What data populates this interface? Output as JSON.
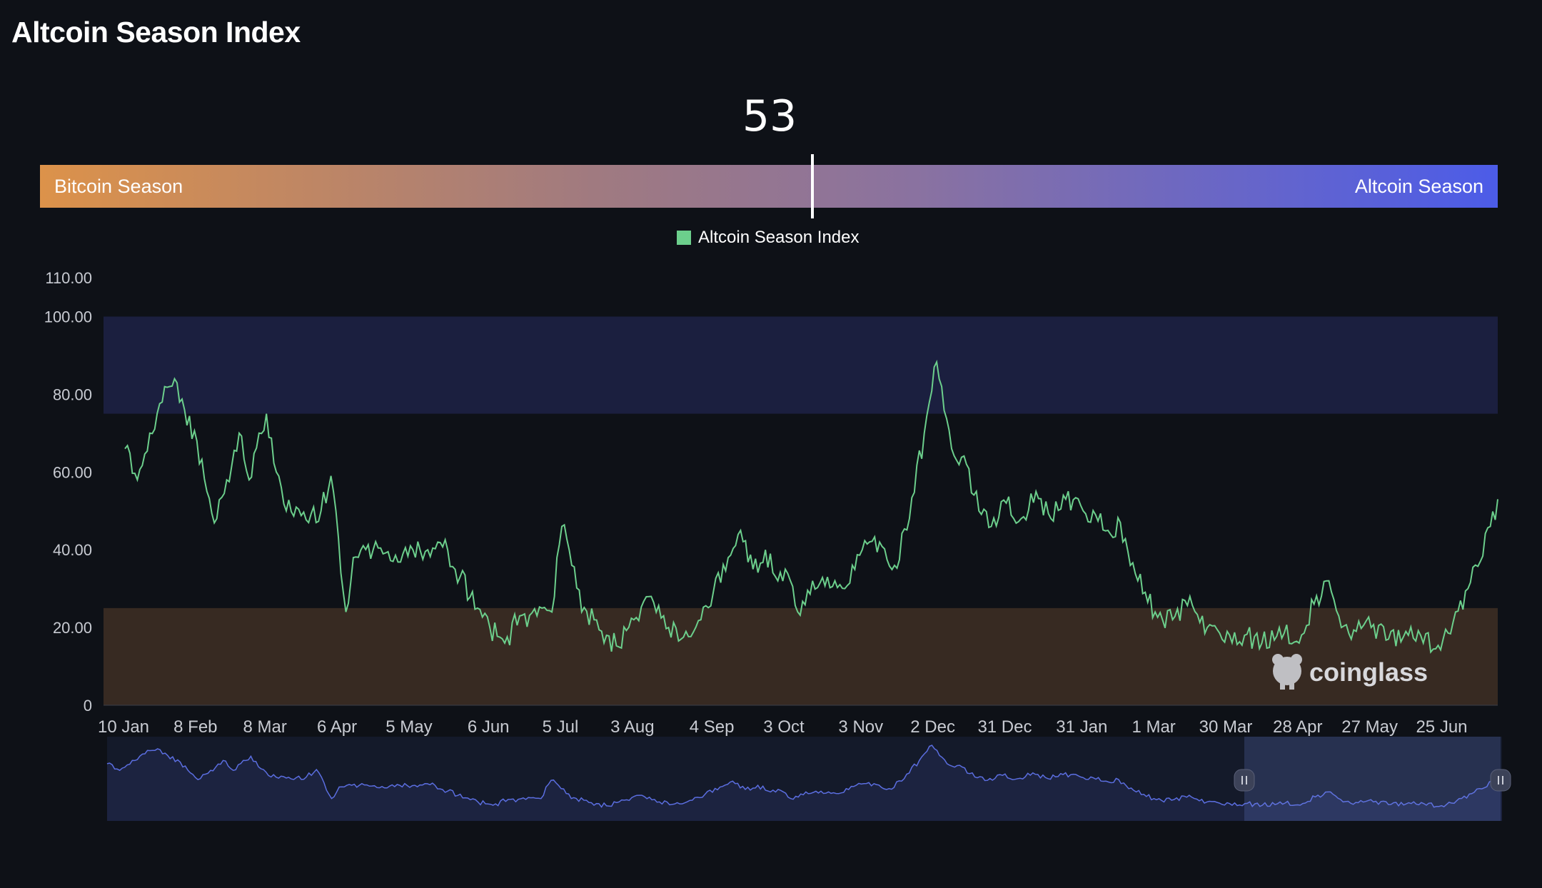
{
  "header": {
    "title": "Altcoin Season Index"
  },
  "indicator": {
    "value": "53",
    "left_label": "Bitcoin Season",
    "right_label": "Altcoin Season"
  },
  "legend": {
    "label": "Altcoin Season Index",
    "color": "#6ccf8c"
  },
  "watermark": {
    "text": "coinglass"
  },
  "colors": {
    "background": "#0e1117",
    "altcoin_zone": "#1b1f3f",
    "bitcoin_zone": "#372a22",
    "line": "#6ccf8c",
    "navigator": "#5b6ee0"
  },
  "chart_data": {
    "type": "line",
    "title": "",
    "xlabel": "",
    "ylabel": "",
    "ylim": [
      0,
      110
    ],
    "y_ticks": [
      "0",
      "20.00",
      "40.00",
      "60.00",
      "80.00",
      "100.00",
      "110.00"
    ],
    "x_ticks": [
      "10 Jan",
      "8 Feb",
      "8 Mar",
      "6 Apr",
      "5 May",
      "6 Jun",
      "5 Jul",
      "3 Aug",
      "4 Sep",
      "3 Oct",
      "3 Nov",
      "2 Dec",
      "31 Dec",
      "31 Jan",
      "1 Mar",
      "30 Mar",
      "28 Apr",
      "27 May",
      "25 Jun"
    ],
    "zones": [
      {
        "name": "Altcoin Season",
        "from": 75,
        "to": 100
      },
      {
        "name": "Bitcoin Season",
        "from": 0,
        "to": 25
      }
    ],
    "series": [
      {
        "name": "Altcoin Season Index",
        "keypoints": [
          [
            "10 Jan",
            66
          ],
          [
            "15 Jan",
            58
          ],
          [
            "20 Jan",
            70
          ],
          [
            "25 Jan",
            78
          ],
          [
            "30 Jan",
            84
          ],
          [
            "3 Feb",
            76
          ],
          [
            "8 Feb",
            68
          ],
          [
            "12 Feb",
            55
          ],
          [
            "16 Feb",
            48
          ],
          [
            "20 Feb",
            58
          ],
          [
            "25 Feb",
            70
          ],
          [
            "1 Mar",
            58
          ],
          [
            "5 Mar",
            70
          ],
          [
            "8 Mar",
            75
          ],
          [
            "12 Mar",
            60
          ],
          [
            "16 Mar",
            50
          ],
          [
            "20 Mar",
            51
          ],
          [
            "25 Mar",
            47
          ],
          [
            "30 Mar",
            50
          ],
          [
            "3 Apr",
            59
          ],
          [
            "6 Apr",
            43
          ],
          [
            "9 Apr",
            24
          ],
          [
            "12 Apr",
            38
          ],
          [
            "20 Apr",
            40
          ],
          [
            "28 Apr",
            37
          ],
          [
            "5 May",
            41
          ],
          [
            "12 May",
            40
          ],
          [
            "20 May",
            40
          ],
          [
            "25 May",
            33
          ],
          [
            "1 Jun",
            25
          ],
          [
            "6 Jun",
            20
          ],
          [
            "12 Jun",
            16
          ],
          [
            "18 Jun",
            23
          ],
          [
            "25 Jun",
            23
          ],
          [
            "1 Jul",
            24
          ],
          [
            "5 Jul",
            46
          ],
          [
            "9 Jul",
            36
          ],
          [
            "13 Jul",
            24
          ],
          [
            "18 Jul",
            22
          ],
          [
            "23 Jul",
            18
          ],
          [
            "28 Jul",
            15
          ],
          [
            "3 Aug",
            22
          ],
          [
            "10 Aug",
            28
          ],
          [
            "17 Aug",
            20
          ],
          [
            "24 Aug",
            19
          ],
          [
            "30 Aug",
            22
          ],
          [
            "4 Sep",
            29
          ],
          [
            "10 Sep",
            38
          ],
          [
            "15 Sep",
            45
          ],
          [
            "20 Sep",
            35
          ],
          [
            "25 Sep",
            40
          ],
          [
            "30 Sep",
            32
          ],
          [
            "3 Oct",
            35
          ],
          [
            "8 Oct",
            24
          ],
          [
            "14 Oct",
            32
          ],
          [
            "20 Oct",
            33
          ],
          [
            "27 Oct",
            30
          ],
          [
            "3 Nov",
            40
          ],
          [
            "10 Nov",
            42
          ],
          [
            "16 Nov",
            36
          ],
          [
            "22 Nov",
            48
          ],
          [
            "28 Nov",
            70
          ],
          [
            "2 Dec",
            87
          ],
          [
            "5 Dec",
            82
          ],
          [
            "9 Dec",
            66
          ],
          [
            "15 Dec",
            62
          ],
          [
            "20 Dec",
            50
          ],
          [
            "25 Dec",
            46
          ],
          [
            "31 Dec",
            52
          ],
          [
            "6 Jan",
            48
          ],
          [
            "12 Jan",
            55
          ],
          [
            "18 Jan",
            48
          ],
          [
            "24 Jan",
            53
          ],
          [
            "31 Jan",
            50
          ],
          [
            "5 Feb",
            49
          ],
          [
            "10 Feb",
            45
          ],
          [
            "15 Feb",
            47
          ],
          [
            "22 Feb",
            32
          ],
          [
            "1 Mar",
            24
          ],
          [
            "8 Mar",
            22
          ],
          [
            "15 Mar",
            28
          ],
          [
            "22 Mar",
            20
          ],
          [
            "30 Mar",
            19
          ],
          [
            "6 Apr",
            18
          ],
          [
            "13 Apr",
            16
          ],
          [
            "20 Apr",
            20
          ],
          [
            "28 Apr",
            16
          ],
          [
            "4 May",
            26
          ],
          [
            "9 May",
            32
          ],
          [
            "15 May",
            20
          ],
          [
            "21 May",
            19
          ],
          [
            "27 May",
            20
          ],
          [
            "3 Jun",
            17
          ],
          [
            "10 Jun",
            19
          ],
          [
            "17 Jun",
            16
          ],
          [
            "25 Jun",
            17
          ],
          [
            "30 Jun",
            24
          ],
          [
            "5 Jul",
            30
          ],
          [
            "10 Jul",
            37
          ],
          [
            "14 Jul",
            46
          ],
          [
            "17 Jul",
            53
          ]
        ]
      }
    ]
  }
}
